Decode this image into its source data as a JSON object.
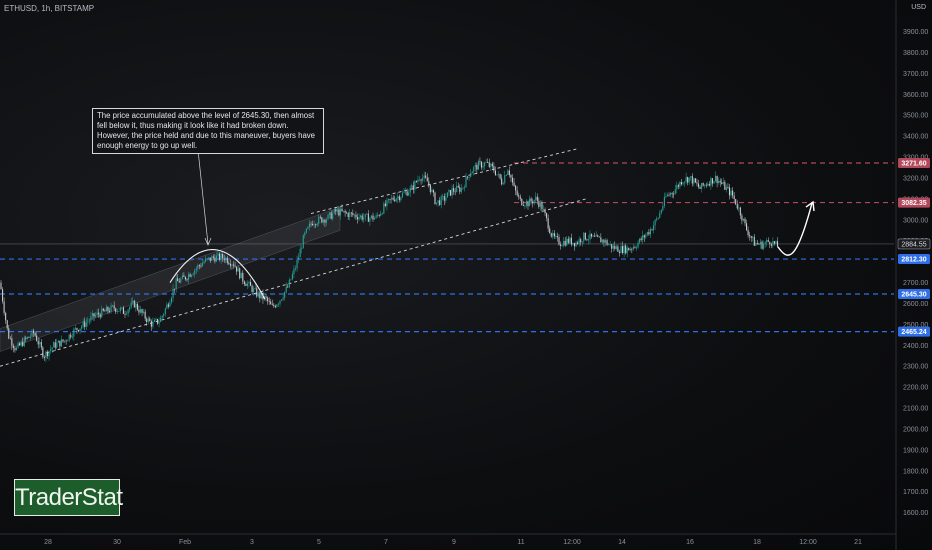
{
  "header": {
    "symbol_line": "ETHUSD, 1h, BITSTAMP",
    "currency": "USD"
  },
  "annotation": {
    "text": "The price accumulated above the level of 2645.30, then almost fell below it, thus making it look like it had broken down. However, the price held and due to this maneuver, buyers have enough energy to go up well."
  },
  "logo": {
    "text": "TraderStat"
  },
  "colors": {
    "up": "#26a69a",
    "down": "#c8ccd2",
    "resistance": "#b2485a",
    "support": "#2f6fe8",
    "channel": "#d6d8dc"
  },
  "chart_data": {
    "type": "candlestick",
    "y_axis": {
      "min": 1560,
      "max": 3960,
      "ticks": [
        1600,
        1700,
        1800,
        1900,
        2000,
        2100,
        2200,
        2300,
        2400,
        2500,
        2600,
        2700,
        2800,
        2900,
        3000,
        3100,
        3200,
        3300,
        3400,
        3500,
        3600,
        3700,
        3800,
        3900
      ]
    },
    "x_ticks": [
      "28",
      "30",
      "Feb",
      "3",
      "5",
      "7",
      "9",
      "11",
      "12:00",
      "14",
      "16",
      "18",
      "12:00",
      "21"
    ],
    "levels": [
      {
        "price": 3271.6,
        "label": "3271.60",
        "kind": "resistance"
      },
      {
        "price": 3082.35,
        "label": "3082.35",
        "kind": "resistance"
      },
      {
        "price": 2812.3,
        "label": "2812.30",
        "kind": "support"
      },
      {
        "price": 2645.3,
        "label": "2645.30",
        "kind": "support"
      },
      {
        "price": 2465.24,
        "label": "2465.24",
        "kind": "support"
      }
    ],
    "last_price": {
      "price": 2884.55,
      "label": "2884.55"
    },
    "price_path": [
      [
        0,
        2700
      ],
      [
        8,
        2450
      ],
      [
        16,
        2380
      ],
      [
        24,
        2420
      ],
      [
        34,
        2460
      ],
      [
        44,
        2350
      ],
      [
        54,
        2400
      ],
      [
        64,
        2420
      ],
      [
        74,
        2470
      ],
      [
        84,
        2500
      ],
      [
        94,
        2540
      ],
      [
        104,
        2560
      ],
      [
        114,
        2580
      ],
      [
        124,
        2560
      ],
      [
        134,
        2600
      ],
      [
        144,
        2540
      ],
      [
        152,
        2500
      ],
      [
        160,
        2520
      ],
      [
        168,
        2600
      ],
      [
        176,
        2700
      ],
      [
        184,
        2720
      ],
      [
        194,
        2760
      ],
      [
        204,
        2800
      ],
      [
        214,
        2820
      ],
      [
        224,
        2820
      ],
      [
        234,
        2790
      ],
      [
        242,
        2720
      ],
      [
        250,
        2680
      ],
      [
        258,
        2640
      ],
      [
        266,
        2620
      ],
      [
        272,
        2580
      ],
      [
        280,
        2620
      ],
      [
        288,
        2680
      ],
      [
        296,
        2780
      ],
      [
        304,
        2920
      ],
      [
        312,
        2990
      ],
      [
        320,
        3000
      ],
      [
        328,
        3010
      ],
      [
        336,
        3040
      ],
      [
        346,
        3030
      ],
      [
        356,
        3020
      ],
      [
        366,
        3010
      ],
      [
        376,
        3010
      ],
      [
        384,
        3060
      ],
      [
        392,
        3100
      ],
      [
        402,
        3120
      ],
      [
        412,
        3150
      ],
      [
        420,
        3210
      ],
      [
        428,
        3180
      ],
      [
        436,
        3080
      ],
      [
        444,
        3100
      ],
      [
        452,
        3140
      ],
      [
        462,
        3150
      ],
      [
        470,
        3230
      ],
      [
        478,
        3260
      ],
      [
        486,
        3270
      ],
      [
        494,
        3240
      ],
      [
        502,
        3180
      ],
      [
        508,
        3250
      ],
      [
        514,
        3150
      ],
      [
        520,
        3090
      ],
      [
        528,
        3080
      ],
      [
        536,
        3100
      ],
      [
        542,
        3060
      ],
      [
        548,
        2980
      ],
      [
        552,
        2920
      ],
      [
        560,
        2890
      ],
      [
        568,
        2900
      ],
      [
        576,
        2890
      ],
      [
        584,
        2920
      ],
      [
        594,
        2910
      ],
      [
        604,
        2900
      ],
      [
        612,
        2870
      ],
      [
        620,
        2860
      ],
      [
        628,
        2860
      ],
      [
        636,
        2880
      ],
      [
        644,
        2920
      ],
      [
        650,
        2950
      ],
      [
        658,
        3010
      ],
      [
        666,
        3110
      ],
      [
        674,
        3140
      ],
      [
        682,
        3190
      ],
      [
        690,
        3200
      ],
      [
        700,
        3150
      ],
      [
        708,
        3180
      ],
      [
        716,
        3200
      ],
      [
        724,
        3160
      ],
      [
        732,
        3120
      ],
      [
        740,
        3040
      ],
      [
        746,
        2960
      ],
      [
        754,
        2890
      ],
      [
        762,
        2880
      ],
      [
        770,
        2900
      ],
      [
        778,
        2870
      ]
    ],
    "channel": {
      "lower": {
        "from": [
          0,
          2300
        ],
        "to": [
          586,
          3100
        ]
      },
      "upper": {
        "from": [
          311,
          3030
        ],
        "to": [
          578,
          3340
        ]
      }
    },
    "accum_channel": {
      "lower": {
        "from": [
          0,
          2370
        ],
        "to": [
          340,
          2950
        ]
      },
      "upper": {
        "from": [
          0,
          2480
        ],
        "to": [
          340,
          3060
        ]
      }
    },
    "projection": {
      "from": [
        778,
        2870
      ],
      "to": [
        812,
        3080
      ]
    },
    "arc": {
      "from": [
        170,
        2700
      ],
      "to": [
        265,
        2620
      ],
      "peak": [
        217,
        2860
      ]
    }
  }
}
